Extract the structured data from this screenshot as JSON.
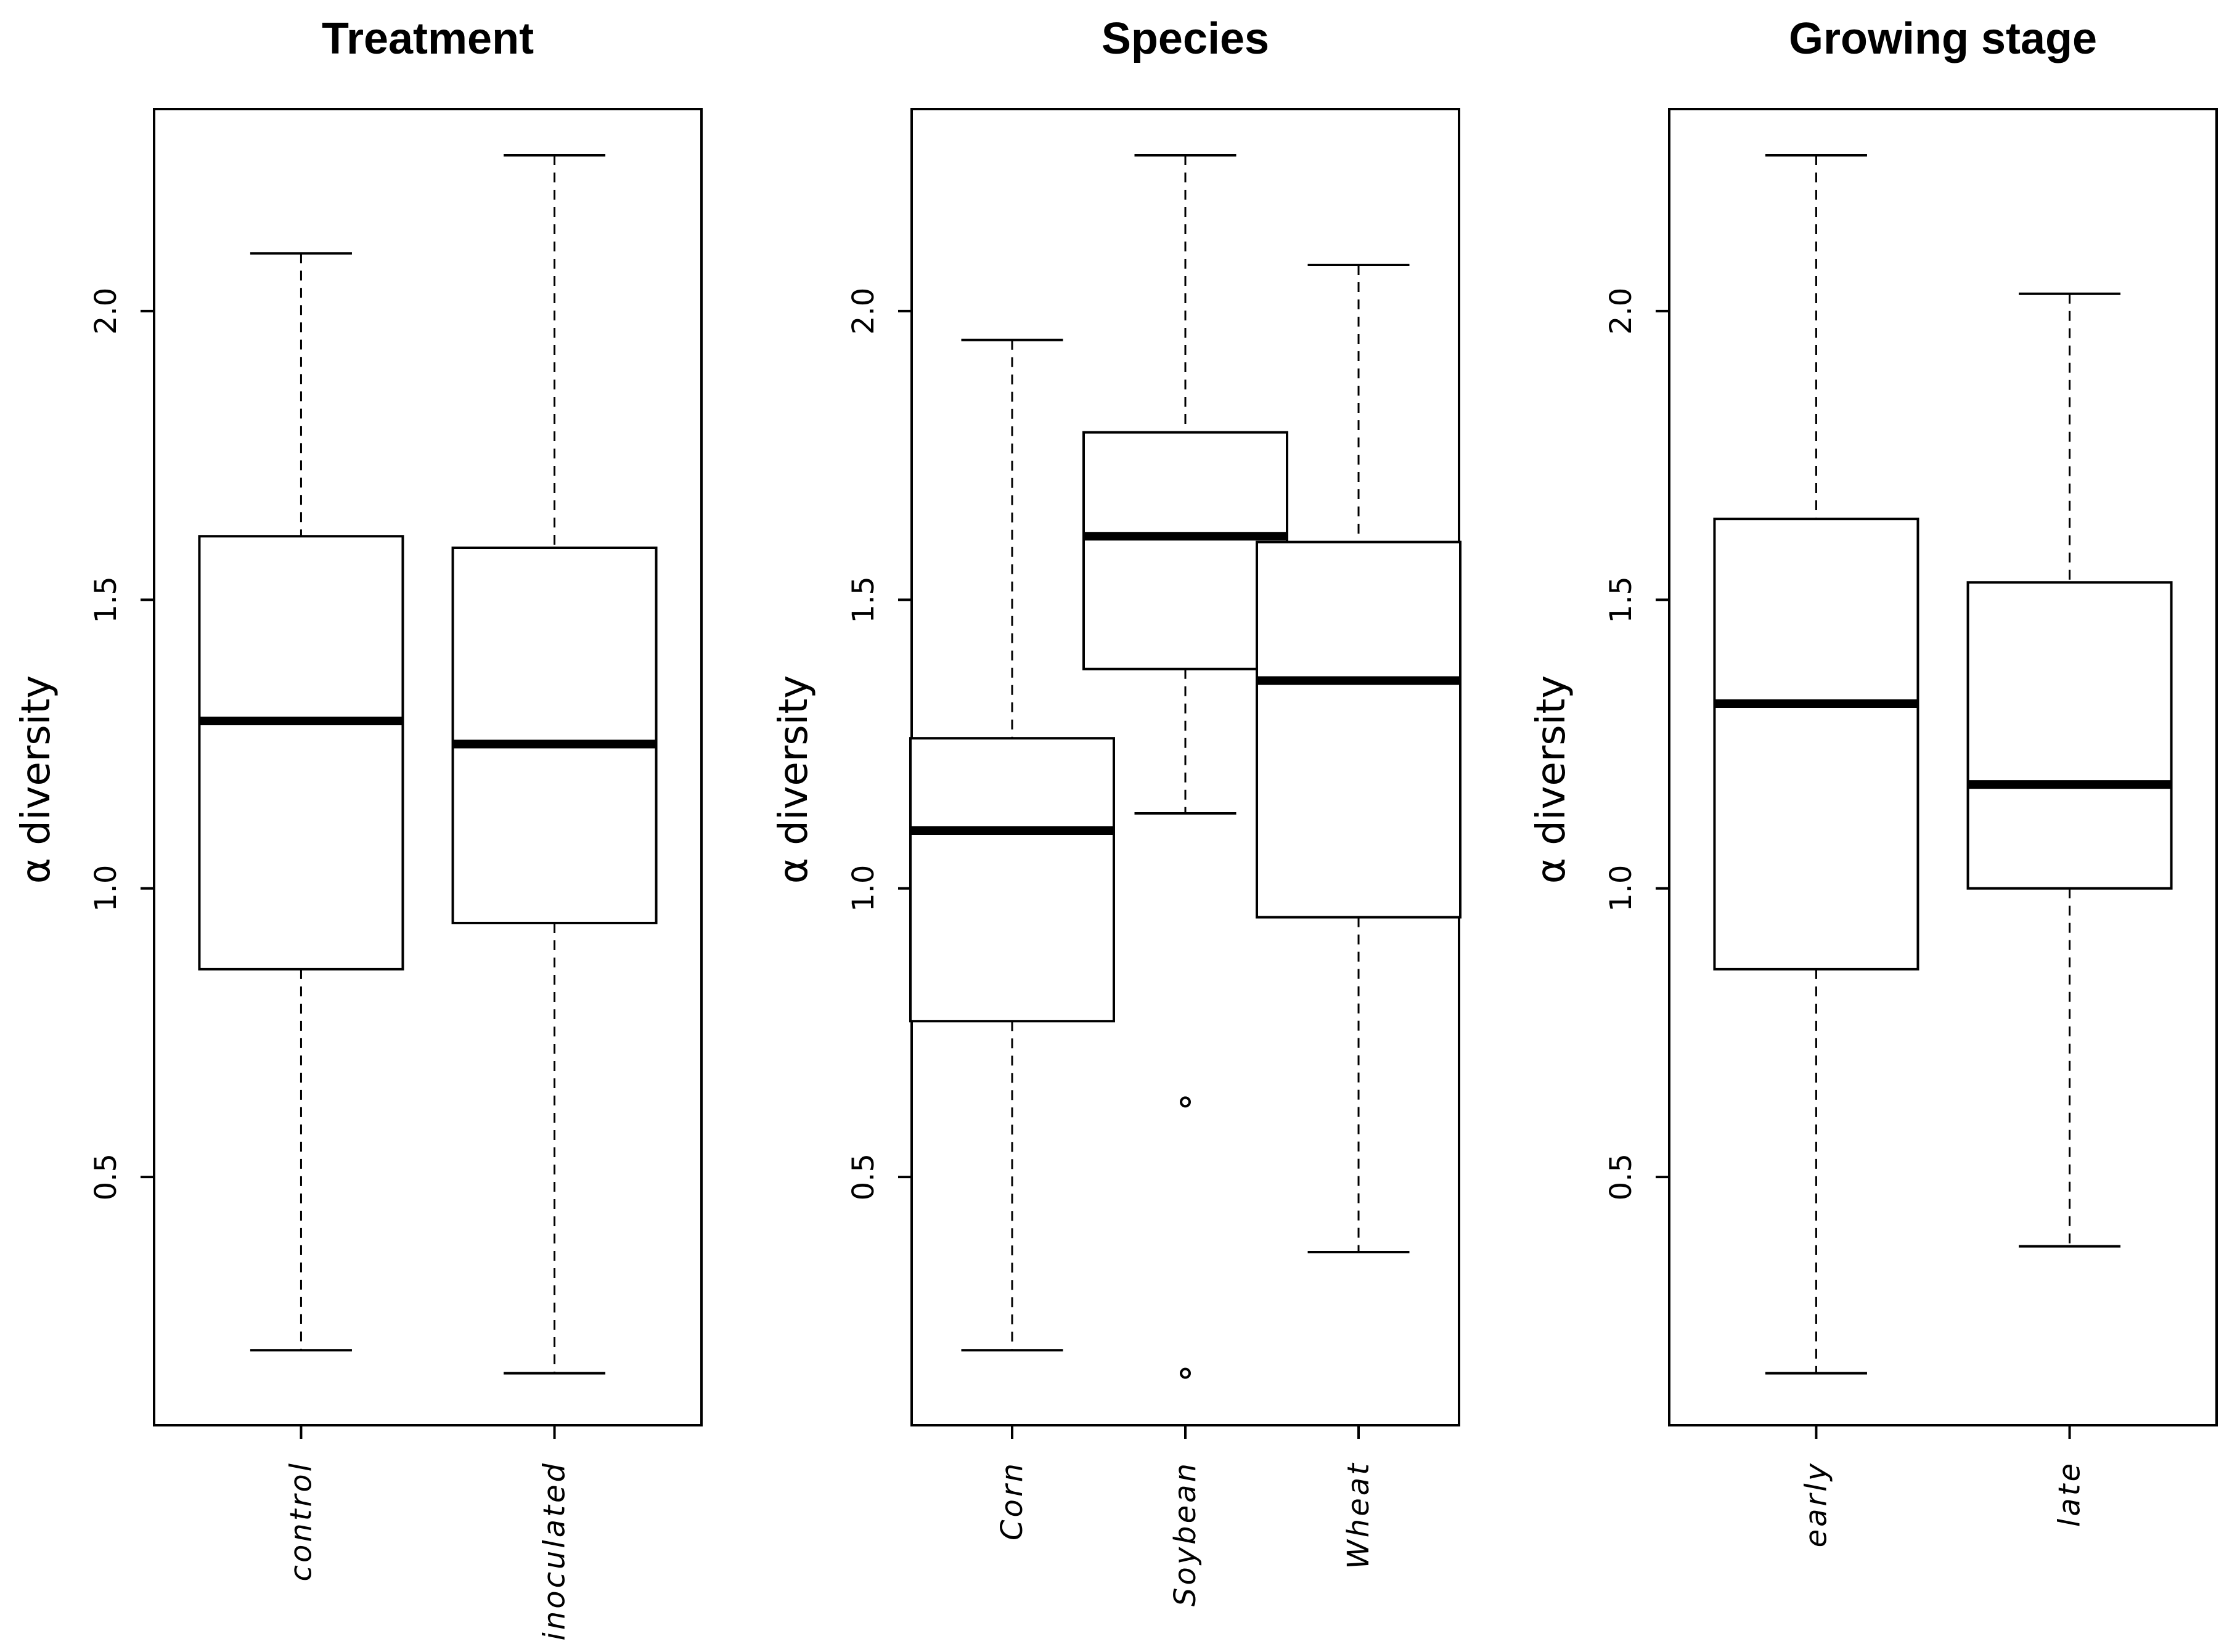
{
  "chart_data": [
    {
      "type": "box",
      "title": "Treatment",
      "xlabel": "",
      "ylabel": "α diversity",
      "ylim": [
        0.07,
        2.35
      ],
      "yticks": [
        "0.5",
        "1.0",
        "1.5",
        "2.0"
      ],
      "categories": [
        "control",
        "inoculated"
      ],
      "boxes": [
        {
          "whisker_low": 0.2,
          "q1": 0.86,
          "median": 1.29,
          "q3": 1.61,
          "whisker_high": 2.1,
          "outliers": []
        },
        {
          "whisker_low": 0.16,
          "q1": 0.94,
          "median": 1.25,
          "q3": 1.59,
          "whisker_high": 2.27,
          "outliers": []
        }
      ]
    },
    {
      "type": "box",
      "title": "Species",
      "xlabel": "",
      "ylabel": "α diversity",
      "ylim": [
        0.07,
        2.35
      ],
      "yticks": [
        "0.5",
        "1.0",
        "1.5",
        "2.0"
      ],
      "categories": [
        "Corn",
        "Soybean",
        "Wheat"
      ],
      "boxes": [
        {
          "whisker_low": 0.2,
          "q1": 0.77,
          "median": 1.1,
          "q3": 1.26,
          "whisker_high": 1.95,
          "outliers": []
        },
        {
          "whisker_low": 1.13,
          "q1": 1.38,
          "median": 1.61,
          "q3": 1.79,
          "whisker_high": 2.27,
          "outliers": [
            0.63,
            0.16
          ]
        },
        {
          "whisker_low": 0.37,
          "q1": 0.95,
          "median": 1.36,
          "q3": 1.6,
          "whisker_high": 2.08,
          "outliers": []
        }
      ]
    },
    {
      "type": "box",
      "title": "Growing stage",
      "xlabel": "",
      "ylabel": "α diversity",
      "ylim": [
        0.07,
        2.35
      ],
      "yticks": [
        "0.5",
        "1.0",
        "1.5",
        "2.0"
      ],
      "categories": [
        "early",
        "late"
      ],
      "boxes": [
        {
          "whisker_low": 0.16,
          "q1": 0.86,
          "median": 1.32,
          "q3": 1.64,
          "whisker_high": 2.27,
          "outliers": []
        },
        {
          "whisker_low": 0.38,
          "q1": 1.0,
          "median": 1.18,
          "q3": 1.53,
          "whisker_high": 2.03,
          "outliers": []
        }
      ]
    }
  ]
}
